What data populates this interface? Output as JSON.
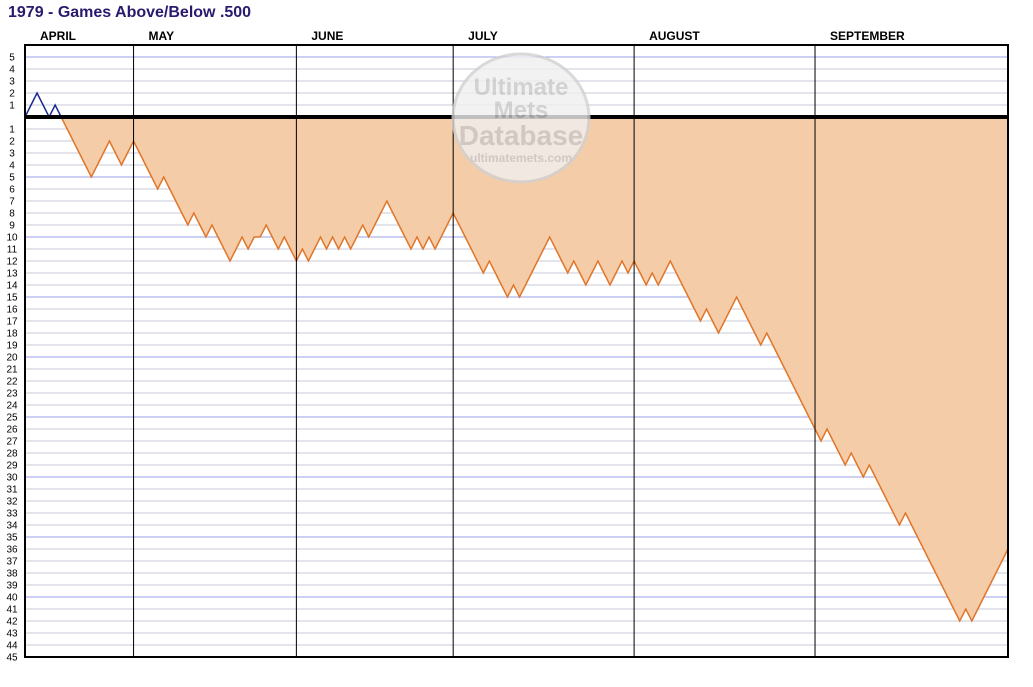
{
  "chart_data": {
    "type": "area",
    "title": "1979 - Games Above/Below .500",
    "xlabel": "",
    "ylabel": "",
    "months": [
      "APRIL",
      "MAY",
      "JUNE",
      "JULY",
      "AUGUST",
      "SEPTEMBER"
    ],
    "month_start_game": [
      0,
      18,
      45,
      71,
      101,
      131
    ],
    "games_played": 163,
    "ylim": [
      -45,
      5
    ],
    "above_ticks": [
      "5",
      "4",
      "3",
      "2",
      "1"
    ],
    "below_ticks": [
      "1",
      "2",
      "3",
      "4",
      "5",
      "6",
      "7",
      "8",
      "9",
      "10",
      "11",
      "12",
      "13",
      "14",
      "15",
      "16",
      "17",
      "18",
      "19",
      "20",
      "21",
      "22",
      "23",
      "24",
      "25",
      "26",
      "27",
      "28",
      "29",
      "30",
      "31",
      "32",
      "33",
      "34",
      "35",
      "36",
      "37",
      "38",
      "39",
      "40",
      "41",
      "42",
      "43",
      "44",
      "45"
    ],
    "series": [
      {
        "values": [
          0,
          1,
          2,
          1,
          0,
          1,
          0,
          -1,
          -2,
          -3,
          -4,
          -5,
          -4,
          -3,
          -2,
          -3,
          -4,
          -3,
          -2,
          -3,
          -4,
          -5,
          -6,
          -5,
          -6,
          -7,
          -8,
          -9,
          -8,
          -9,
          -10,
          -9,
          -10,
          -11,
          -12,
          -11,
          -10,
          -11,
          -10,
          -10,
          -9,
          -10,
          -11,
          -10,
          -11,
          -12,
          -11,
          -12,
          -11,
          -10,
          -11,
          -10,
          -11,
          -10,
          -11,
          -10,
          -9,
          -10,
          -9,
          -8,
          -7,
          -8,
          -9,
          -10,
          -11,
          -10,
          -11,
          -10,
          -11,
          -10,
          -9,
          -8,
          -9,
          -10,
          -11,
          -12,
          -13,
          -12,
          -13,
          -14,
          -15,
          -14,
          -15,
          -14,
          -13,
          -12,
          -11,
          -10,
          -11,
          -12,
          -13,
          -12,
          -13,
          -14,
          -13,
          -12,
          -13,
          -14,
          -13,
          -12,
          -13,
          -12,
          -13,
          -14,
          -13,
          -14,
          -13,
          -12,
          -13,
          -14,
          -15,
          -16,
          -17,
          -16,
          -17,
          -18,
          -17,
          -16,
          -15,
          -16,
          -17,
          -18,
          -19,
          -18,
          -19,
          -20,
          -21,
          -22,
          -23,
          -24,
          -25,
          -26,
          -27,
          -26,
          -27,
          -28,
          -29,
          -28,
          -29,
          -30,
          -29,
          -30,
          -31,
          -32,
          -33,
          -34,
          -33,
          -34,
          -35,
          -36,
          -37,
          -38,
          -39,
          -40,
          -41,
          -42,
          -41,
          -42,
          -41,
          -40,
          -39,
          -38,
          -37,
          -36
        ]
      }
    ],
    "grid": true,
    "colors": {
      "title": "#2a1a6e",
      "above_line": "#1a2a8e",
      "below_line": "#e0762a",
      "below_fill": "#f5cca8",
      "major_grid": "#9aa0e6",
      "minor_grid": "#c8c8d8",
      "axis": "#000000"
    }
  },
  "watermark": {
    "line1": "Ultimate",
    "line2": "Mets",
    "line3": "Database",
    "url": "ultimatemets.com"
  }
}
